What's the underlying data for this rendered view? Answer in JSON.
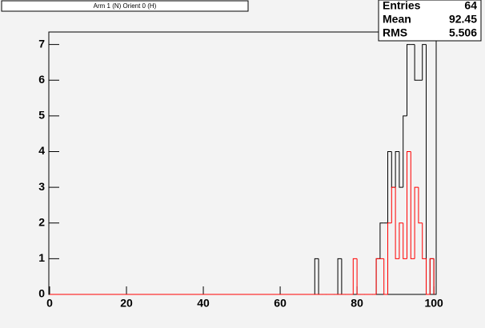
{
  "chart_data": {
    "type": "histogram",
    "title": "Arm 1 (N) Orient 0 (H)",
    "bins": [
      0,
      68,
      69,
      70,
      71,
      72,
      73,
      74,
      75,
      76,
      77,
      78,
      79,
      80,
      81,
      82,
      83,
      84,
      85,
      86,
      87,
      88,
      89,
      90,
      91,
      92,
      93,
      94,
      95,
      96,
      97,
      98,
      99,
      100
    ],
    "series": [
      {
        "color": "#000000",
        "values": [
          0,
          0,
          1,
          0,
          0,
          0,
          0,
          0,
          1,
          0,
          0,
          0,
          0,
          0,
          0,
          0,
          0,
          0,
          1,
          2,
          2,
          4,
          3,
          4,
          3,
          5,
          7,
          7,
          6,
          6,
          7,
          0,
          1
        ]
      },
      {
        "color": "#ff0000",
        "values": [
          0,
          0,
          0,
          0,
          0,
          0,
          0,
          0,
          0,
          0,
          0,
          0,
          1,
          0,
          0,
          0,
          0,
          0,
          1,
          1,
          0,
          2,
          3,
          1,
          2,
          1,
          4,
          1,
          3,
          2,
          1,
          0,
          1
        ]
      }
    ],
    "xlim": [
      0,
      100.6
    ],
    "ylim": [
      0,
      7.35
    ],
    "xticks": [
      0,
      20,
      40,
      60,
      80,
      100
    ],
    "yticks": [
      0,
      1,
      2,
      3,
      4,
      5,
      6,
      7
    ],
    "stats": {
      "labels": [
        "Entries",
        "Mean",
        "RMS"
      ],
      "values": [
        64,
        92.45,
        5.506
      ]
    }
  }
}
